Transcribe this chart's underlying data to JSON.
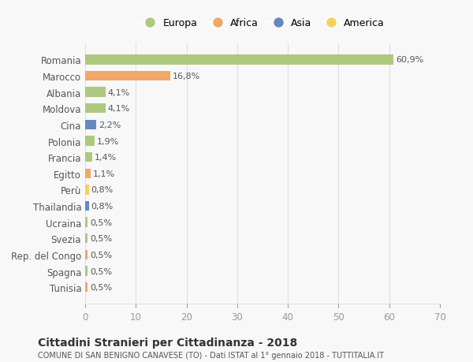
{
  "countries": [
    "Romania",
    "Marocco",
    "Albania",
    "Moldova",
    "Cina",
    "Polonia",
    "Francia",
    "Egitto",
    "Perù",
    "Thailandia",
    "Ucraina",
    "Svezia",
    "Rep. del Congo",
    "Spagna",
    "Tunisia"
  ],
  "values": [
    60.9,
    16.8,
    4.1,
    4.1,
    2.2,
    1.9,
    1.4,
    1.1,
    0.8,
    0.8,
    0.5,
    0.5,
    0.5,
    0.5,
    0.5
  ],
  "labels": [
    "60,9%",
    "16,8%",
    "4,1%",
    "4,1%",
    "2,2%",
    "1,9%",
    "1,4%",
    "1,1%",
    "0,8%",
    "0,8%",
    "0,5%",
    "0,5%",
    "0,5%",
    "0,5%",
    "0,5%"
  ],
  "colors": [
    "#adc97e",
    "#f0a868",
    "#adc97e",
    "#adc97e",
    "#6688c0",
    "#adc97e",
    "#adc97e",
    "#f0a868",
    "#f5d060",
    "#6688c0",
    "#adc97e",
    "#adc97e",
    "#f0a868",
    "#adc97e",
    "#f0a868"
  ],
  "legend": [
    {
      "label": "Europa",
      "color": "#adc97e"
    },
    {
      "label": "Africa",
      "color": "#f0a868"
    },
    {
      "label": "Asia",
      "color": "#6688c0"
    },
    {
      "label": "America",
      "color": "#f5d060"
    }
  ],
  "xlim": [
    0,
    70
  ],
  "xticks": [
    0,
    10,
    20,
    30,
    40,
    50,
    60,
    70
  ],
  "title": "Cittadini Stranieri per Cittadinanza - 2018",
  "subtitle": "COMUNE DI SAN BENIGNO CANAVESE (TO) - Dati ISTAT al 1° gennaio 2018 - TUTTITALIA.IT",
  "bg_color": "#f8f8f8",
  "grid_color": "#e0e0e0"
}
